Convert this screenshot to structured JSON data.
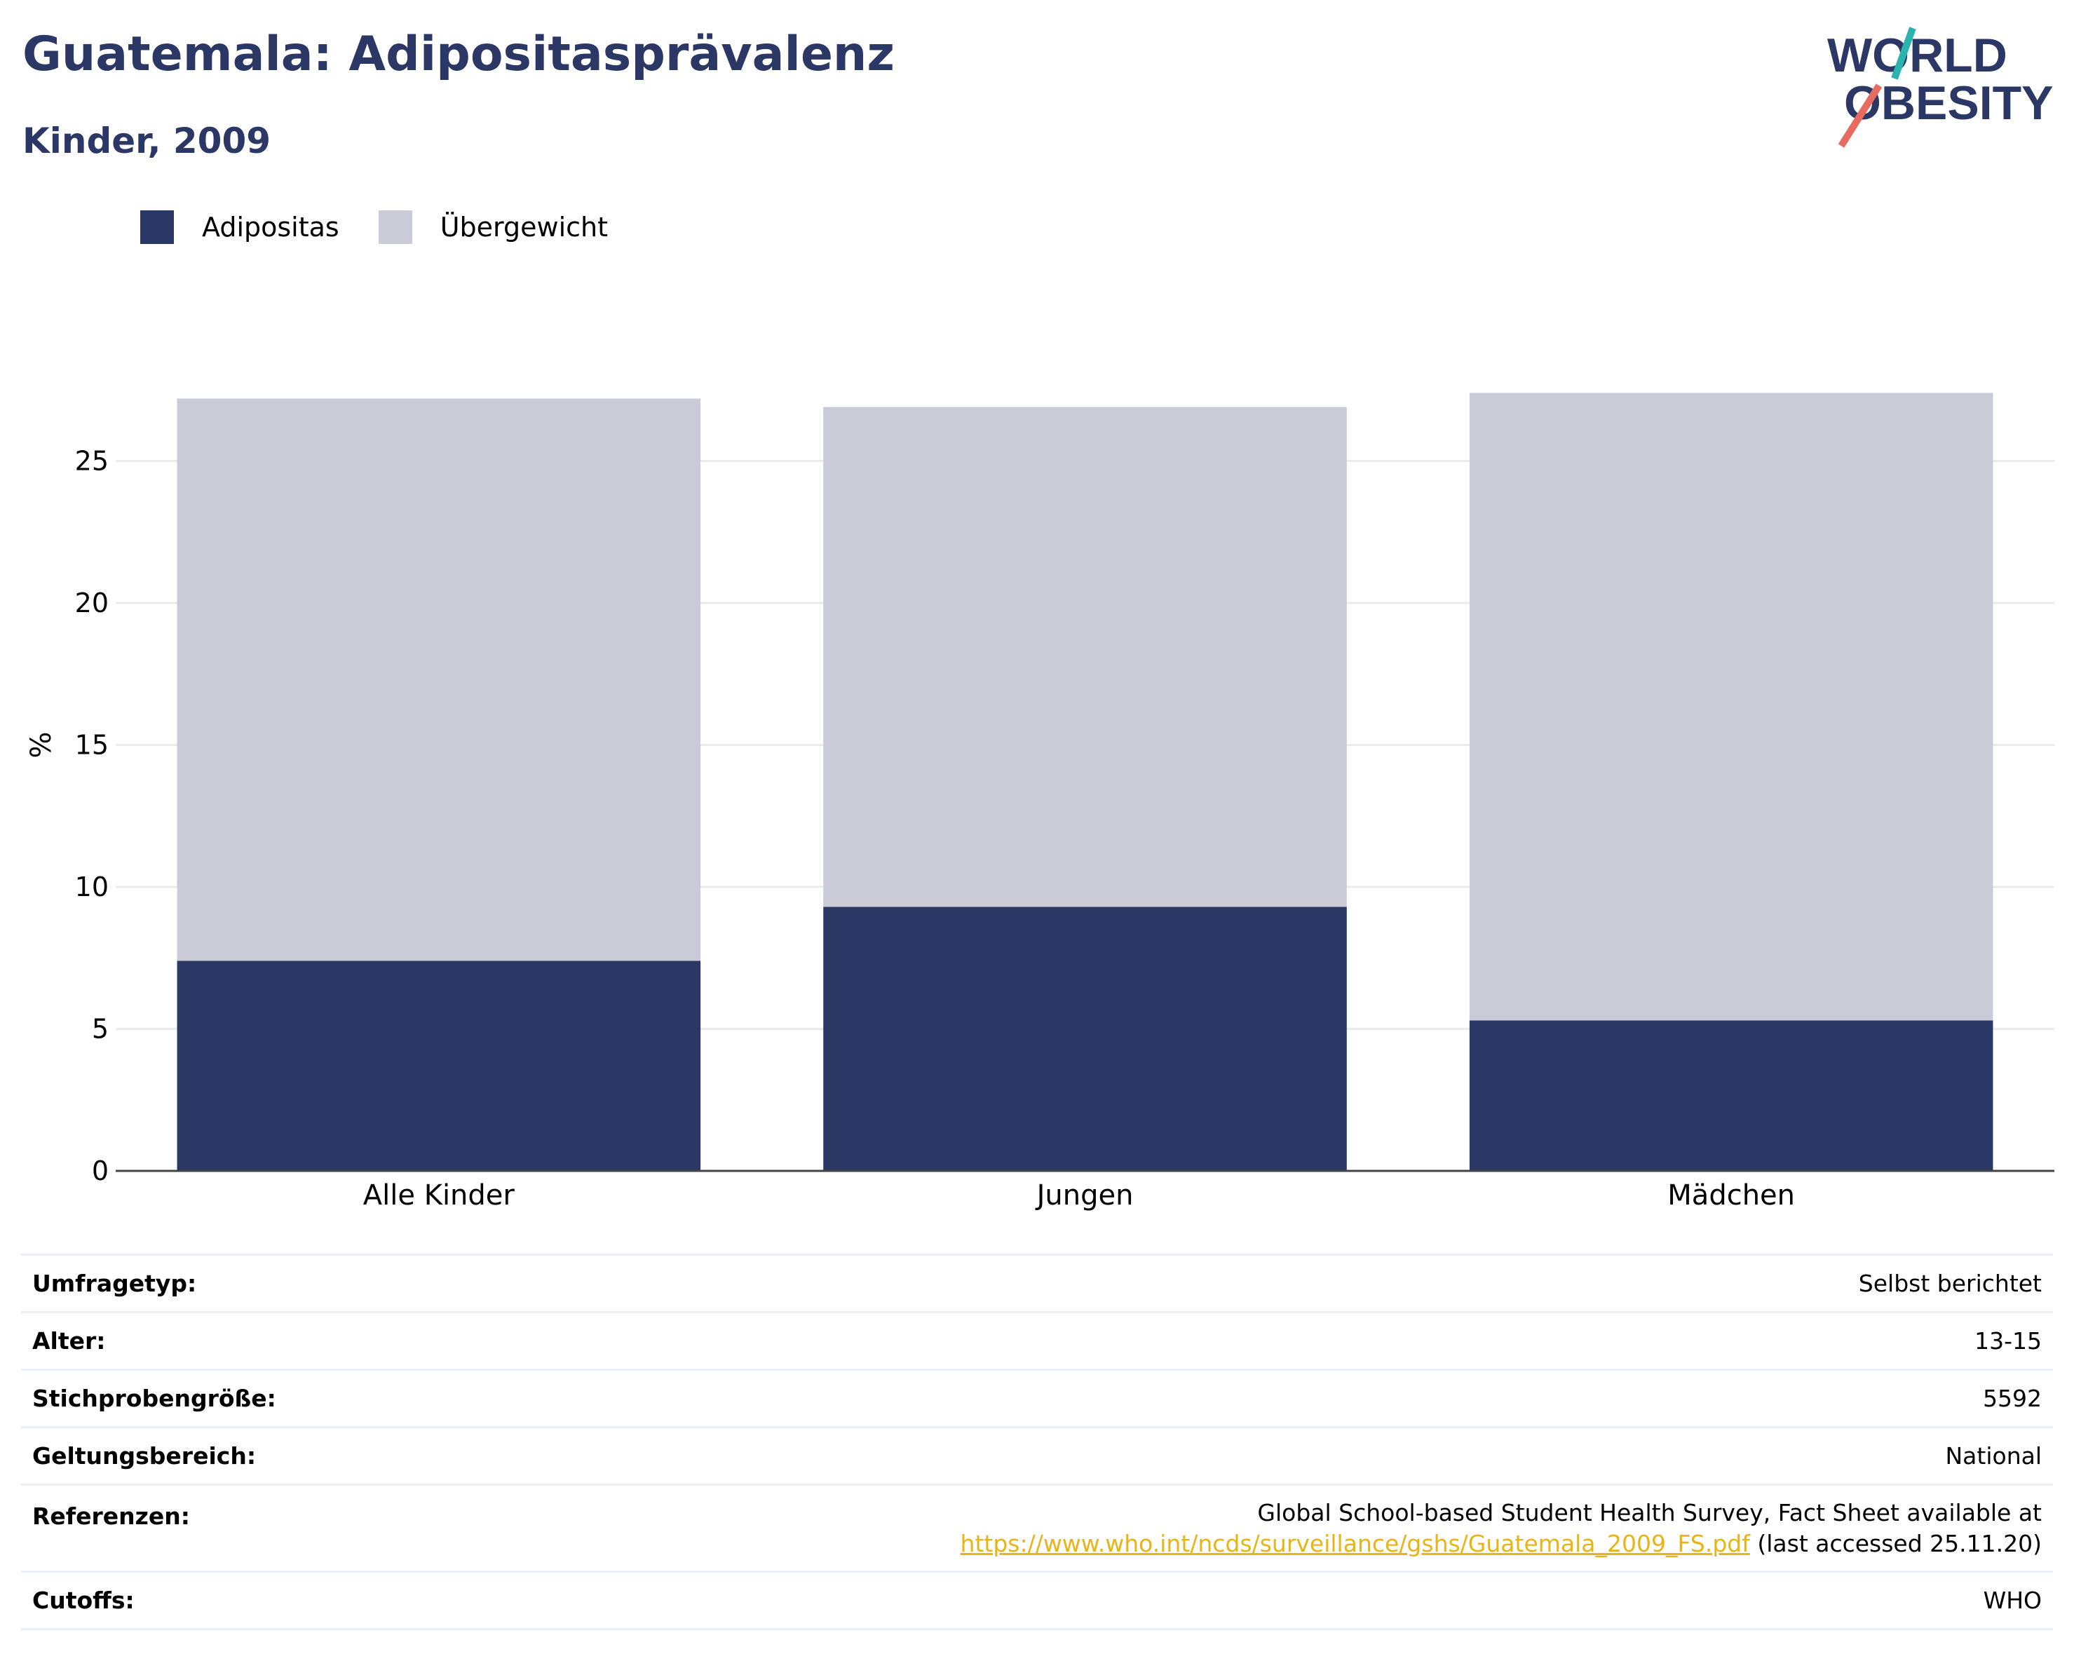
{
  "header": {
    "title": "Guatemala: Adipositasprävalenz",
    "subtitle": "Kinder, 2009",
    "logo_line1": "WORLD",
    "logo_line2": "OBESITY"
  },
  "colors": {
    "adipositas": "#2b3764",
    "uebergewicht": "#cacbd7",
    "title": "#2b3764",
    "link": "#e8b416",
    "logo_teal": "#2bb3b0",
    "logo_coral": "#e86b5f"
  },
  "chart_data": {
    "type": "bar",
    "stacked": true,
    "categories": [
      "Alle Kinder",
      "Jungen",
      "Mädchen"
    ],
    "series": [
      {
        "name": "Adipositas",
        "values": [
          7.4,
          9.3,
          5.3
        ]
      },
      {
        "name": "Übergewicht",
        "values": [
          19.8,
          17.6,
          22.1
        ]
      }
    ],
    "ylabel": "%",
    "ylim": [
      0,
      30
    ],
    "yticks": [
      0,
      5,
      10,
      15,
      20,
      25
    ],
    "grid": true,
    "legend": "top-left"
  },
  "info": {
    "rows": [
      {
        "key": "Umfragetyp:",
        "value": "Selbst berichtet"
      },
      {
        "key": "Alter:",
        "value": "13-15"
      },
      {
        "key": "Stichprobengröße:",
        "value": "5592"
      },
      {
        "key": "Geltungsbereich:",
        "value": "National"
      }
    ],
    "references": {
      "key": "Referenzen:",
      "line1": "Global School-based Student Health Survey, Fact Sheet available at",
      "link": "https://www.who.int/ncds/surveillance/gshs/Guatemala_2009_FS.pdf",
      "suffix": " (last accessed 25.11.20)"
    },
    "cutoffs": {
      "key": "Cutoffs:",
      "value": "WHO"
    }
  }
}
